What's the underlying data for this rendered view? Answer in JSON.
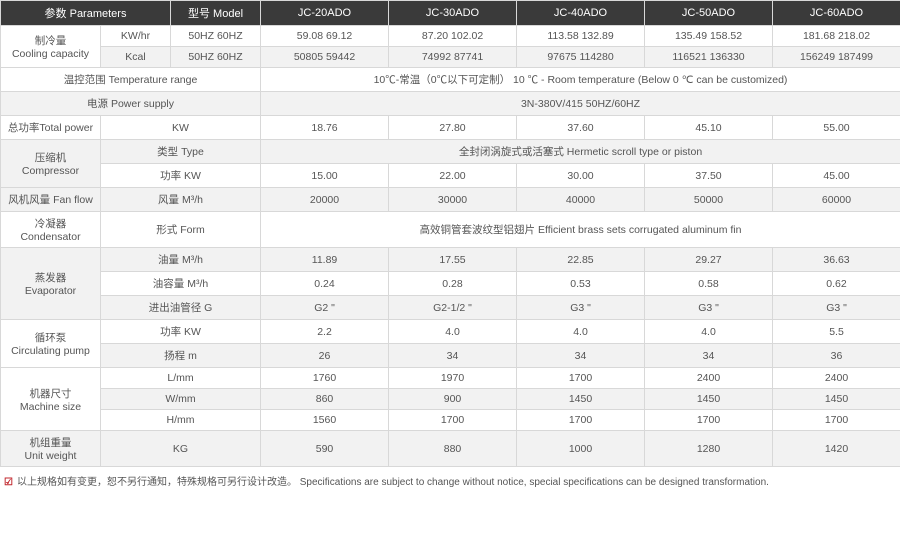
{
  "header": {
    "params": "参数 Parameters",
    "model": "型号 Model",
    "models": [
      "JC-20ADO",
      "JC-30ADO",
      "JC-40ADO",
      "JC-50ADO",
      "JC-60ADO"
    ]
  },
  "colors": {
    "header_bg": "#3a3a3a",
    "alt_bg": "#f2f2f2",
    "border": "#d8d8d8",
    "text": "#555",
    "check": "#c1272d"
  },
  "cooling": {
    "label": "制冷量\nCooling capacity",
    "kw": {
      "unit": "KW/hr",
      "hz": "50HZ  60HZ",
      "vals": [
        "59.08 69.12",
        "87.20 102.02",
        "113.58 132.89",
        "135.49 158.52",
        "181.68 218.02"
      ]
    },
    "kcal": {
      "unit": "Kcal",
      "hz": "50HZ  60HZ",
      "vals": [
        "50805 59442",
        "74992 87741",
        "97675 114280",
        "116521 136330",
        "156249 187499"
      ]
    }
  },
  "temp": {
    "label": "温控范围 Temperature range",
    "value": "10℃-常温（0℃以下可定制）   10 ℃ - Room temperature (Below 0 ℃ can be customized)"
  },
  "power_supply": {
    "label": "电源 Power supply",
    "value": "3N-380V/415   50HZ/60HZ"
  },
  "total_power": {
    "label": "总功率Total power",
    "unit": "KW",
    "vals": [
      "18.76",
      "27.80",
      "37.60",
      "45.10",
      "55.00"
    ]
  },
  "compressor": {
    "label": "压缩机\nCompressor",
    "type_label": "类型 Type",
    "type_value": "全封闭涡旋式或活塞式 Hermetic scroll type or piston",
    "pw_label": "功率 KW",
    "pw_vals": [
      "15.00",
      "22.00",
      "30.00",
      "37.50",
      "45.00"
    ]
  },
  "fanflow": {
    "label": "风机风量 Fan flow",
    "unit": "风量 M³/h",
    "vals": [
      "20000",
      "30000",
      "40000",
      "50000",
      "60000"
    ]
  },
  "condensator": {
    "label": "冷凝器\nCondensator",
    "form_label": "形式 Form",
    "form_value": "高效铜管套波纹型铝翅片 Efficient brass sets corrugated aluminum fin"
  },
  "evaporator": {
    "label": "蒸发器\nEvaporator",
    "oil_flow": {
      "label": "油量 M³/h",
      "vals": [
        "11.89",
        "17.55",
        "22.85",
        "29.27",
        "36.63"
      ]
    },
    "oil_cap": {
      "label": "油容量 M³/h",
      "vals": [
        "0.24",
        "0.28",
        "0.53",
        "0.58",
        "0.62"
      ]
    },
    "pipe": {
      "label": "进出油管径 G",
      "vals": [
        "G2 \"",
        "G2-1/2 \"",
        "G3 \"",
        "G3 \"",
        "G3 \""
      ]
    }
  },
  "pump": {
    "label": "循环泵\nCirculating pump",
    "pw": {
      "label": "功率 KW",
      "vals": [
        "2.2",
        "4.0",
        "4.0",
        "4.0",
        "5.5"
      ]
    },
    "lift": {
      "label": "扬程 m",
      "vals": [
        "26",
        "34",
        "34",
        "34",
        "36"
      ]
    }
  },
  "size": {
    "label": "机器尺寸\nMachine size",
    "l": {
      "label": "L/mm",
      "vals": [
        "1760",
        "1970",
        "1700",
        "2400",
        "2400"
      ]
    },
    "w": {
      "label": "W/mm",
      "vals": [
        "860",
        "900",
        "1450",
        "1450",
        "1450"
      ]
    },
    "h": {
      "label": "H/mm",
      "vals": [
        "1560",
        "1700",
        "1700",
        "1700",
        "1700"
      ]
    }
  },
  "weight": {
    "label": "机组重量\nUnit weight",
    "unit": "KG",
    "vals": [
      "590",
      "880",
      "1000",
      "1280",
      "1420"
    ]
  },
  "footnote": "以上规格如有变更，恕不另行通知，特殊规格可另行设计改造。   Specifications are subject to change without notice, special specifications can be designed transformation."
}
